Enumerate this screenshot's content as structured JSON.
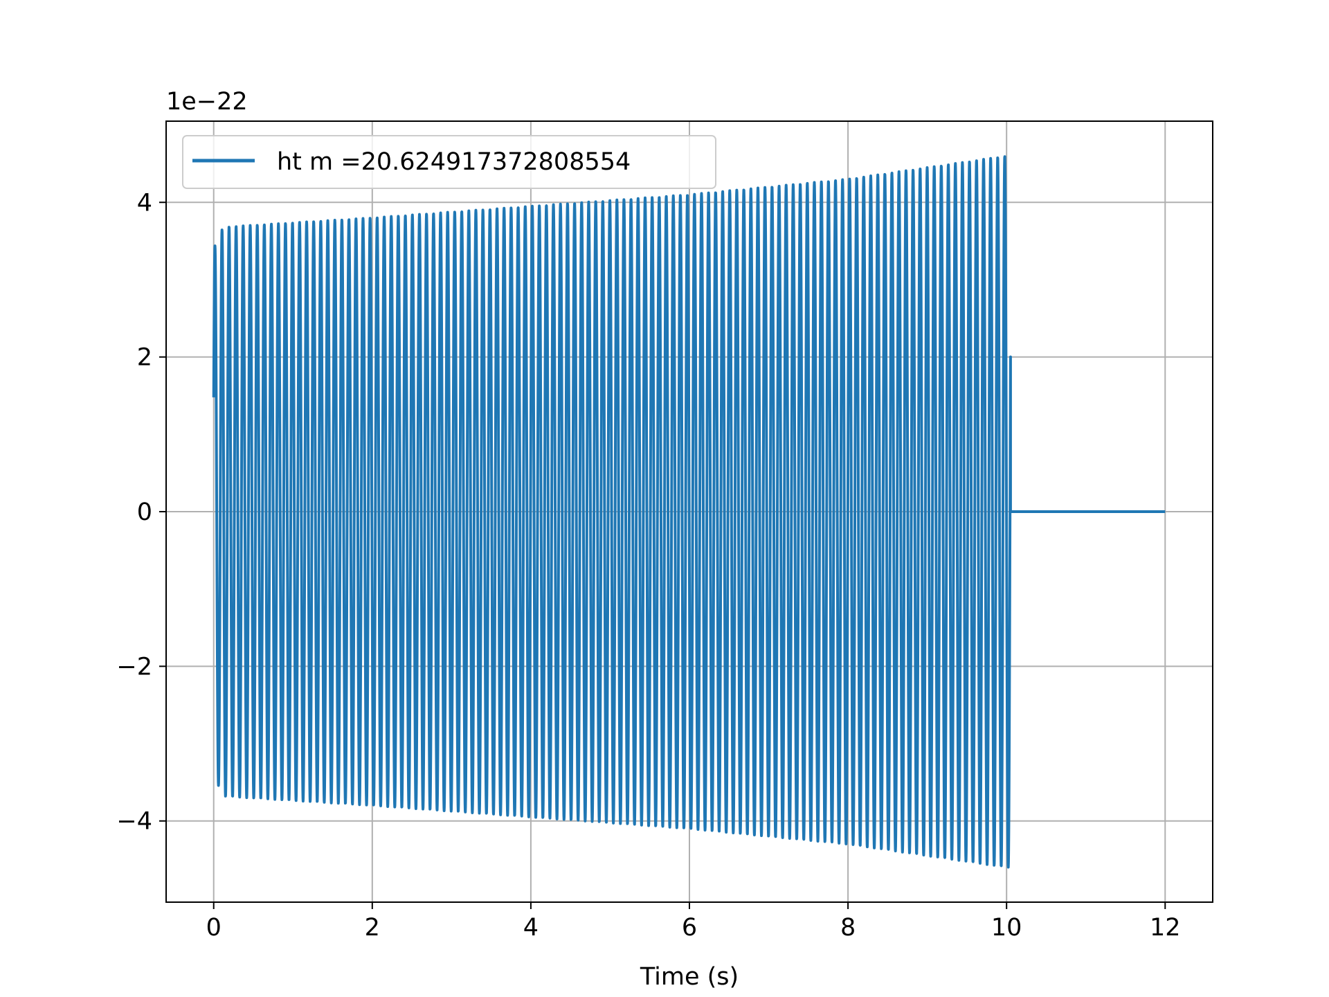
{
  "chart_data": {
    "type": "line",
    "title": "",
    "xlabel": "Time (s)",
    "ylabel": "",
    "y_offset_label": "1e−22",
    "xlim": [
      -0.6,
      12.6
    ],
    "ylim": [
      -5.05,
      5.05
    ],
    "x_ticks": [
      0,
      2,
      4,
      6,
      8,
      10,
      12
    ],
    "x_tick_labels": [
      "0",
      "2",
      "4",
      "6",
      "8",
      "10",
      "12"
    ],
    "y_ticks": [
      -4,
      -2,
      0,
      2,
      4
    ],
    "y_tick_labels": [
      "−4",
      "−2",
      "0",
      "2",
      "4"
    ],
    "grid": true,
    "legend_position": "top-left",
    "series": [
      {
        "name": "ht m =20.624917372808554",
        "color": "#1f77b4",
        "signal": "oscillation",
        "t_start": 0,
        "t_signal_end": 10.05,
        "t_end": 12,
        "cycles": 113,
        "envelope_t": [
          0,
          0.12,
          2,
          4,
          6,
          8,
          10
        ],
        "envelope_amplitude": [
          3.4,
          3.68,
          3.8,
          3.95,
          4.1,
          4.3,
          4.6
        ],
        "value_after_end": 0
      }
    ]
  }
}
